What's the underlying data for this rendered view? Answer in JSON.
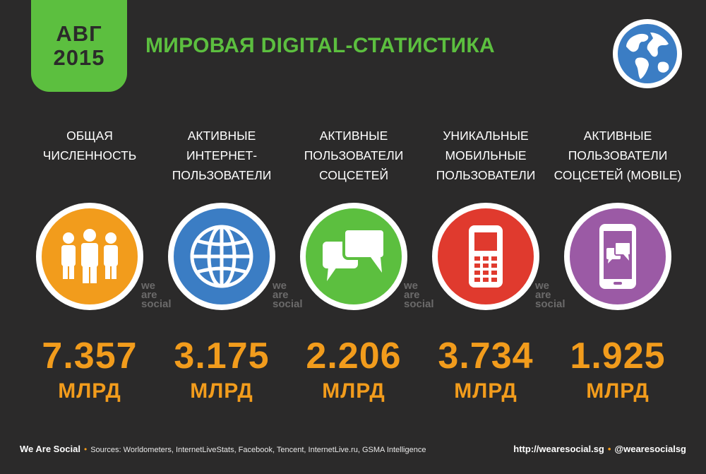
{
  "header": {
    "date_month": "АВГ",
    "date_year": "2015",
    "title": "МИРОВАЯ DIGITAL-СТАТИСТИКА",
    "globe_icon": "globe-icon"
  },
  "colors": {
    "background": "#2b2a2a",
    "accent_green": "#5cbf3f",
    "accent_orange": "#f29c1c"
  },
  "stats": [
    {
      "label_lines": [
        "ОБЩАЯ",
        "ЧИСЛЕННОСТЬ"
      ],
      "value": "7.357",
      "unit": "МЛРД",
      "color": "#f29c1c",
      "icon": "people-icon"
    },
    {
      "label_lines": [
        "АКТИВНЫЕ",
        "ИНТЕРНЕТ-",
        "ПОЛЬЗОВАТЕЛИ"
      ],
      "value": "3.175",
      "unit": "МЛРД",
      "color": "#3b7dc4",
      "icon": "globe-grid-icon"
    },
    {
      "label_lines": [
        "АКТИВНЫЕ",
        "ПОЛЬЗОВАТЕЛИ",
        "СОЦСЕТЕЙ"
      ],
      "value": "2.206",
      "unit": "МЛРД",
      "color": "#5cbf3f",
      "icon": "chat-bubbles-icon"
    },
    {
      "label_lines": [
        "УНИКАЛЬНЫЕ",
        "МОБИЛЬНЫЕ",
        "ПОЛЬЗОВАТЕЛИ"
      ],
      "value": "3.734",
      "unit": "МЛРД",
      "color": "#e03a2e",
      "icon": "mobile-phone-icon"
    },
    {
      "label_lines": [
        "АКТИВНЫЕ",
        "ПОЛЬЗОВАТЕЛИ",
        "СОЦСЕТЕЙ (MOBILE)"
      ],
      "value": "1.925",
      "unit": "МЛРД",
      "color": "#9b5aa5",
      "icon": "smartphone-chat-icon"
    }
  ],
  "watermark": {
    "line1": "we",
    "line2": "are",
    "line3": "social"
  },
  "footer": {
    "brand": "We Are Social",
    "sources": "Sources: Worldometers, InternetLiveStats, Facebook, Tencent, InternetLive.ru, GSMA Intelligence",
    "website": "http://wearesocial.sg",
    "handle": "@wearesocialsg"
  }
}
